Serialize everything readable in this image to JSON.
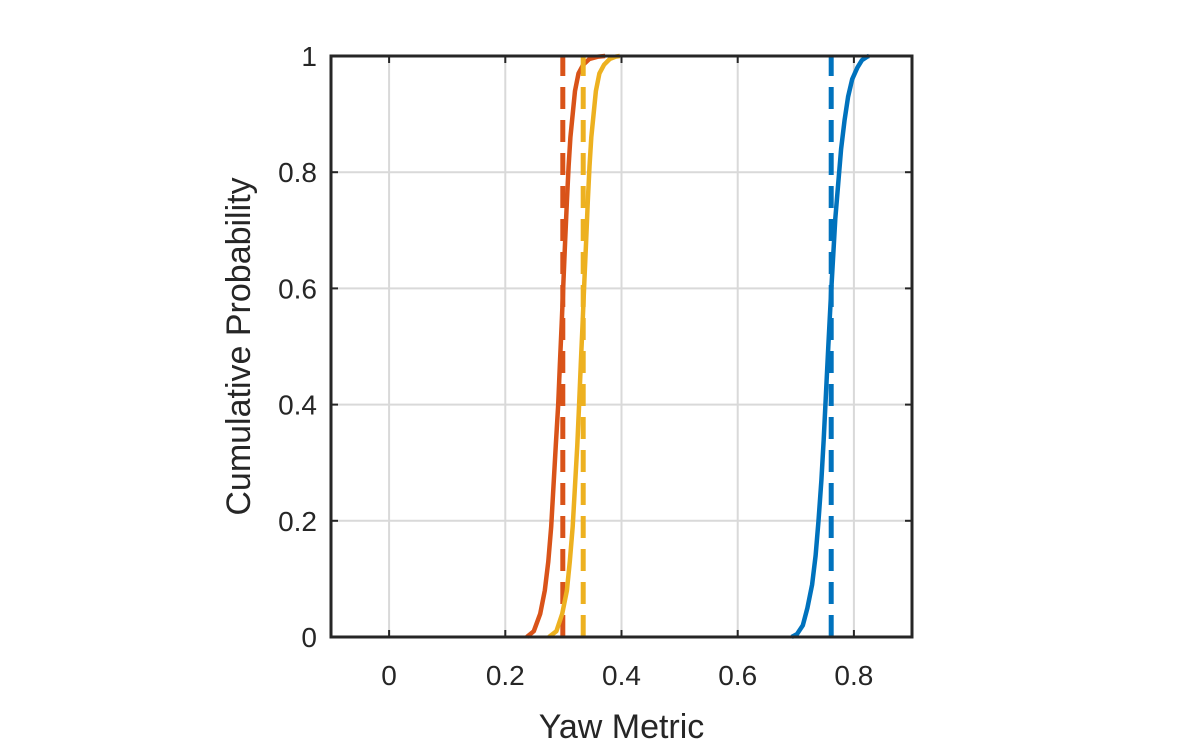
{
  "chart_data": {
    "type": "line",
    "title": "",
    "xlabel": "Yaw Metric",
    "ylabel": "Cumulative Probability",
    "xlim": [
      -0.1,
      0.9
    ],
    "ylim": [
      0,
      1
    ],
    "xticks": [
      0,
      0.2,
      0.4,
      0.6,
      0.8
    ],
    "xtick_labels": [
      "0",
      "0.2",
      "0.4",
      "0.6",
      "0.8"
    ],
    "yticks": [
      0,
      0.2,
      0.4,
      0.6,
      0.8,
      1
    ],
    "ytick_labels": [
      "0",
      "0.2",
      "0.4",
      "0.6",
      "0.8",
      "1"
    ],
    "grid": true,
    "series": [
      {
        "color": "#0072BD",
        "style": "solid",
        "x": [
          0.693,
          0.702,
          0.712,
          0.72,
          0.728,
          0.734,
          0.739,
          0.744,
          0.748,
          0.752,
          0.756,
          0.76,
          0.764,
          0.768,
          0.773,
          0.778,
          0.784,
          0.79,
          0.797,
          0.806,
          0.814,
          0.823,
          0.826
        ],
        "y": [
          0,
          0.005,
          0.02,
          0.05,
          0.09,
          0.14,
          0.2,
          0.27,
          0.34,
          0.42,
          0.5,
          0.58,
          0.65,
          0.72,
          0.78,
          0.84,
          0.89,
          0.93,
          0.96,
          0.98,
          0.993,
          0.999,
          1
        ]
      },
      {
        "color": "#0072BD",
        "style": "dashed",
        "x": [
          0.761,
          0.761
        ],
        "y": [
          0,
          1
        ]
      },
      {
        "color": "#D95319",
        "style": "solid",
        "x": [
          0.237,
          0.249,
          0.26,
          0.268,
          0.274,
          0.279,
          0.283,
          0.287,
          0.291,
          0.294,
          0.297,
          0.3,
          0.303,
          0.306,
          0.309,
          0.312,
          0.316,
          0.32,
          0.326,
          0.334,
          0.345,
          0.36,
          0.372
        ],
        "y": [
          0,
          0.01,
          0.04,
          0.08,
          0.13,
          0.19,
          0.26,
          0.33,
          0.4,
          0.47,
          0.54,
          0.61,
          0.68,
          0.75,
          0.81,
          0.86,
          0.9,
          0.94,
          0.97,
          0.985,
          0.995,
          0.999,
          1
        ]
      },
      {
        "color": "#D95319",
        "style": "dashed",
        "x": [
          0.299,
          0.299
        ],
        "y": [
          0,
          1
        ]
      },
      {
        "color": "#EDB120",
        "style": "solid",
        "x": [
          0.275,
          0.288,
          0.298,
          0.306,
          0.311,
          0.316,
          0.32,
          0.324,
          0.327,
          0.33,
          0.333,
          0.336,
          0.339,
          0.342,
          0.345,
          0.348,
          0.352,
          0.356,
          0.362,
          0.37,
          0.38,
          0.39,
          0.397
        ],
        "y": [
          0,
          0.01,
          0.04,
          0.08,
          0.13,
          0.19,
          0.26,
          0.33,
          0.4,
          0.47,
          0.54,
          0.61,
          0.68,
          0.75,
          0.81,
          0.86,
          0.9,
          0.94,
          0.97,
          0.985,
          0.995,
          0.999,
          1
        ]
      },
      {
        "color": "#EDB120",
        "style": "dashed",
        "x": [
          0.334,
          0.334
        ],
        "y": [
          0,
          1
        ]
      }
    ]
  }
}
